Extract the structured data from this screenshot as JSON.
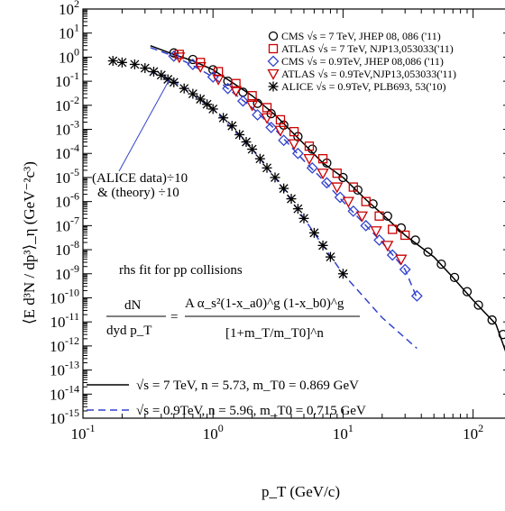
{
  "chart_data": {
    "type": "scatter",
    "xlabel": "p_T (GeV/c)",
    "ylabel": "⟨E d³N / dp³⟩_η (GeV⁻²c³)",
    "x_axis": {
      "scale": "log",
      "range": [
        0.1,
        200
      ],
      "tick_labels": [
        "10^-1",
        "10^0",
        "10^1",
        "10^2"
      ]
    },
    "y_axis": {
      "scale": "log",
      "range": [
        1e-15,
        100
      ],
      "tick_labels": [
        "10^2",
        "10^1",
        "10^0",
        "10^-1",
        "10^-2",
        "10^-3",
        "10^-4",
        "10^-5",
        "10^-6",
        "10^-7",
        "10^-8",
        "10^-9",
        "10^-10",
        "10^-11",
        "10^-12",
        "10^-13",
        "10^-14",
        "10^-15"
      ]
    },
    "grid": false,
    "legend_position": "top-right",
    "series": [
      {
        "name": "CMS √s = 7 TeV, JHEP 08, 086 ('11)",
        "marker": "open-circle",
        "color": "#000000",
        "points": [
          [
            0.5,
            1.5
          ],
          [
            0.7,
            0.8
          ],
          [
            1.0,
            0.3
          ],
          [
            1.3,
            0.1
          ],
          [
            1.7,
            0.035
          ],
          [
            2.2,
            0.012
          ],
          [
            2.8,
            0.0045
          ],
          [
            3.5,
            0.0015
          ],
          [
            4.5,
            0.0005
          ],
          [
            5.8,
            0.00015
          ],
          [
            7.5,
            4e-05
          ],
          [
            10,
            1e-05
          ],
          [
            13,
            3e-06
          ],
          [
            17,
            8e-07
          ],
          [
            22,
            2.5e-07
          ],
          [
            28,
            8e-08
          ],
          [
            36,
            2.5e-08
          ],
          [
            45,
            8e-09
          ],
          [
            57,
            2.5e-09
          ],
          [
            72,
            7e-10
          ],
          [
            90,
            1.8e-10
          ],
          [
            110,
            5e-11
          ],
          [
            140,
            1.2e-11
          ],
          [
            170,
            3e-12
          ],
          [
            200,
            2e-13
          ]
        ]
      },
      {
        "name": "ATLAS √s = 7 TeV, NJP13,053033('11)",
        "marker": "open-square",
        "color": "#cc0000",
        "points": [
          [
            0.55,
            1.3
          ],
          [
            0.8,
            0.6
          ],
          [
            1.1,
            0.25
          ],
          [
            1.5,
            0.08
          ],
          [
            2.0,
            0.025
          ],
          [
            2.6,
            0.008
          ],
          [
            3.3,
            0.0025
          ],
          [
            4.2,
            0.0008
          ],
          [
            5.5,
            0.0002
          ],
          [
            7.0,
            6e-05
          ],
          [
            9.0,
            1.5e-05
          ],
          [
            12,
            4e-06
          ],
          [
            15,
            1e-06
          ],
          [
            19,
            2.5e-07
          ],
          [
            24,
            7e-08
          ],
          [
            30,
            4e-08
          ]
        ]
      },
      {
        "name": "CMS √s = 0.9TeV, JHEP 08,086 ('11)",
        "marker": "open-diamond",
        "color": "#3344cc",
        "points": [
          [
            0.5,
            1.1
          ],
          [
            0.7,
            0.5
          ],
          [
            1.0,
            0.15
          ],
          [
            1.3,
            0.05
          ],
          [
            1.7,
            0.015
          ],
          [
            2.2,
            0.004
          ],
          [
            2.8,
            0.0012
          ],
          [
            3.5,
            0.00035
          ],
          [
            4.5,
            0.0001
          ],
          [
            5.8,
            2.5e-05
          ],
          [
            7.5,
            6e-06
          ],
          [
            9.5,
            1.5e-06
          ],
          [
            12,
            4e-07
          ],
          [
            15,
            1e-07
          ],
          [
            19,
            2.5e-08
          ],
          [
            24,
            6e-09
          ],
          [
            30,
            1.5e-09
          ],
          [
            37,
            1.2e-10
          ]
        ]
      },
      {
        "name": "ATLAS √s = 0.9TeV,NJP13,053033('11)",
        "marker": "open-triangle-down",
        "color": "#cc0000",
        "points": [
          [
            0.55,
            1.0
          ],
          [
            0.8,
            0.4
          ],
          [
            1.1,
            0.12
          ],
          [
            1.5,
            0.04
          ],
          [
            2.0,
            0.01
          ],
          [
            2.6,
            0.003
          ],
          [
            3.3,
            0.0009
          ],
          [
            4.2,
            0.00025
          ],
          [
            5.5,
            6e-05
          ],
          [
            7.0,
            1.5e-05
          ],
          [
            9.0,
            4e-06
          ],
          [
            11,
            1e-06
          ],
          [
            14,
            2.5e-07
          ],
          [
            18,
            6e-08
          ],
          [
            22,
            1.5e-08
          ],
          [
            28,
            4e-09
          ]
        ]
      },
      {
        "name": "ALICE √s = 0.9TeV, PLB693, 53('10)",
        "marker": "asterisk",
        "color": "#000000",
        "points": [
          [
            0.17,
            0.7
          ],
          [
            0.2,
            0.6
          ],
          [
            0.25,
            0.5
          ],
          [
            0.3,
            0.35
          ],
          [
            0.35,
            0.25
          ],
          [
            0.4,
            0.18
          ],
          [
            0.45,
            0.12
          ],
          [
            0.5,
            0.09
          ],
          [
            0.6,
            0.05
          ],
          [
            0.7,
            0.03
          ],
          [
            0.8,
            0.018
          ],
          [
            0.9,
            0.011
          ],
          [
            1.0,
            0.007
          ],
          [
            1.2,
            0.003
          ],
          [
            1.4,
            0.0014
          ],
          [
            1.6,
            0.0006
          ],
          [
            1.8,
            0.0003
          ],
          [
            2.0,
            0.00015
          ],
          [
            2.3,
            6e-05
          ],
          [
            2.6,
            2.5e-05
          ],
          [
            3.0,
            1e-05
          ],
          [
            3.5,
            3.5e-06
          ],
          [
            4.0,
            1.3e-06
          ],
          [
            4.5,
            5e-07
          ],
          [
            5.0,
            2e-07
          ],
          [
            6.0,
            5e-08
          ],
          [
            7.0,
            1.5e-08
          ],
          [
            8.0,
            5e-09
          ],
          [
            10,
            1e-09
          ]
        ]
      }
    ],
    "fit_curves": [
      {
        "name": "√s = 7 TeV, n = 5.73, m_T0 = 0.869 GeV",
        "style": "solid",
        "color": "#000000",
        "points": [
          [
            0.33,
            3.0
          ],
          [
            0.5,
            1.3
          ],
          [
            0.7,
            0.7
          ],
          [
            1.0,
            0.3
          ],
          [
            2.0,
            0.025
          ],
          [
            3.0,
            0.004
          ],
          [
            5.0,
            0.00025
          ],
          [
            7.0,
            4e-05
          ],
          [
            10,
            1e-05
          ],
          [
            15,
            1.2e-06
          ],
          [
            20,
            3e-07
          ],
          [
            30,
            4e-08
          ],
          [
            50,
            5e-09
          ],
          [
            70,
            7e-10
          ],
          [
            100,
            8e-11
          ],
          [
            150,
            8e-12
          ],
          [
            200,
            1e-13
          ]
        ]
      },
      {
        "name": "√s = 0.9TeV, n = 5.96, m_T0 = 0.715 GeV",
        "style": "dashed",
        "color": "#3344cc",
        "points": [
          [
            0.33,
            2.5
          ],
          [
            0.5,
            1.1
          ],
          [
            0.7,
            0.45
          ],
          [
            1.0,
            0.15
          ],
          [
            2.0,
            0.008
          ],
          [
            3.0,
            0.001
          ],
          [
            5.0,
            5e-05
          ],
          [
            7.0,
            8e-06
          ],
          [
            10,
            1e-06
          ],
          [
            15,
            1e-07
          ],
          [
            20,
            2e-08
          ],
          [
            30,
            1.5e-09
          ],
          [
            37,
            1e-10
          ]
        ]
      },
      {
        "name": "ALICE theory ÷10",
        "style": "dashed",
        "color": "#3344cc",
        "points": [
          [
            0.33,
            0.25
          ],
          [
            0.5,
            0.1
          ],
          [
            1.0,
            0.007
          ],
          [
            2.0,
            0.00015
          ],
          [
            3.0,
            1e-05
          ],
          [
            5.0,
            2e-07
          ],
          [
            7.0,
            1.5e-08
          ],
          [
            10,
            1e-09
          ],
          [
            20,
            1.5e-11
          ],
          [
            37,
            8e-13
          ]
        ]
      }
    ],
    "annotations": {
      "alice_note_line1": "(ALICE data)÷10",
      "alice_note_line2": "& (theory)  ÷10",
      "rhs_fit_title": "rhs fit for pp collisions",
      "formula_lhs_num": "dN",
      "formula_lhs_den": "dyd p_T",
      "formula_rhs_num": "A α_s²(1-x_a0)^g (1-x_b0)^g",
      "formula_rhs_den": "[1+m_T/m_T0]^n",
      "fit7_text": "√s = 7    TeV,  n = 5.73,  m_T0 = 0.869 GeV",
      "fit09_text": "√s = 0.9TeV,  n = 5.96,  m_T0 = 0.715 GeV"
    }
  }
}
